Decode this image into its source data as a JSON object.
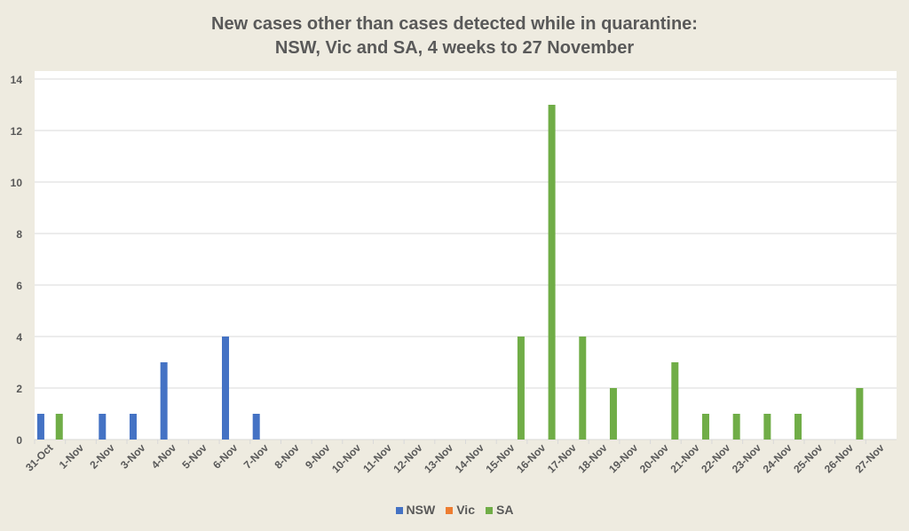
{
  "chart_data": {
    "type": "bar",
    "title": [
      "New cases other than cases detected while in quarantine:",
      "NSW, Vic and SA, 4 weeks to 27 November"
    ],
    "xlabel": "",
    "ylabel": "",
    "ylim": [
      0,
      14
    ],
    "yticks": [
      0,
      2,
      4,
      6,
      8,
      10,
      12,
      14
    ],
    "grid": true,
    "legend": "bottom",
    "categories": [
      "31-Oct",
      "1-Nov",
      "2-Nov",
      "3-Nov",
      "4-Nov",
      "5-Nov",
      "6-Nov",
      "7-Nov",
      "8-Nov",
      "9-Nov",
      "10-Nov",
      "11-Nov",
      "12-Nov",
      "13-Nov",
      "14-Nov",
      "15-Nov",
      "16-Nov",
      "17-Nov",
      "18-Nov",
      "19-Nov",
      "20-Nov",
      "21-Nov",
      "22-Nov",
      "23-Nov",
      "24-Nov",
      "25-Nov",
      "26-Nov",
      "27-Nov"
    ],
    "series": [
      {
        "name": "NSW",
        "color": "#4472c4",
        "values": [
          1,
          0,
          1,
          1,
          3,
          0,
          4,
          1,
          0,
          0,
          0,
          0,
          0,
          0,
          0,
          0,
          0,
          0,
          0,
          0,
          0,
          0,
          0,
          0,
          0,
          0,
          0,
          0
        ]
      },
      {
        "name": "Vic",
        "color": "#ed7d31",
        "values": [
          0,
          0,
          0,
          0,
          0,
          0,
          0,
          0,
          0,
          0,
          0,
          0,
          0,
          0,
          0,
          0,
          0,
          0,
          0,
          0,
          0,
          0,
          0,
          0,
          0,
          0,
          0,
          0
        ]
      },
      {
        "name": "SA",
        "color": "#70ad47",
        "values": [
          1,
          0,
          0,
          0,
          0,
          0,
          0,
          0,
          0,
          0,
          0,
          0,
          0,
          0,
          0,
          4,
          13,
          4,
          2,
          0,
          3,
          1,
          1,
          1,
          1,
          0,
          2,
          0
        ]
      }
    ]
  }
}
